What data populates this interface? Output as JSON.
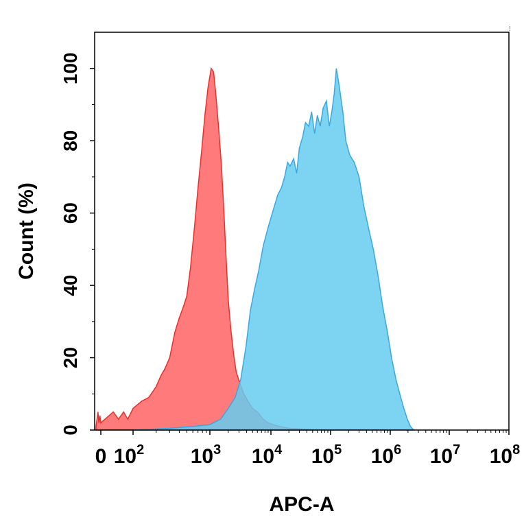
{
  "chart_data": {
    "type": "area",
    "title": "",
    "xlabel": "APC-A",
    "ylabel": "Count (%)",
    "x_scale": "biexponential",
    "xlim": [
      -100,
      100000000
    ],
    "ylim": [
      0,
      110
    ],
    "x_ticks": [
      {
        "value": 0,
        "base": "0",
        "exp": ""
      },
      {
        "value": 100,
        "base": "10",
        "exp": "2"
      },
      {
        "value": 1000,
        "base": "10",
        "exp": "3"
      },
      {
        "value": 10000,
        "base": "10",
        "exp": "4"
      },
      {
        "value": 100000,
        "base": "10",
        "exp": "5"
      },
      {
        "value": 1000000,
        "base": "10",
        "exp": "6"
      },
      {
        "value": 10000000,
        "base": "10",
        "exp": "7"
      },
      {
        "value": 100000000,
        "base": "10",
        "exp": "8"
      }
    ],
    "y_ticks": [
      "0",
      "20",
      "40",
      "60",
      "80",
      "100"
    ],
    "grid": false,
    "legend": "none",
    "series": [
      {
        "color": "#ff6b6b",
        "stroke": "#e8302c",
        "opacity": 0.9,
        "points": [
          [
            -100,
            1
          ],
          [
            -80,
            3
          ],
          [
            -60,
            5
          ],
          [
            -40,
            2
          ],
          [
            -20,
            4
          ],
          [
            0,
            2
          ],
          [
            15,
            5
          ],
          [
            30,
            3
          ],
          [
            50,
            5
          ],
          [
            70,
            3
          ],
          [
            100,
            6
          ],
          [
            130,
            8
          ],
          [
            160,
            9
          ],
          [
            200,
            12
          ],
          [
            230,
            15
          ],
          [
            260,
            17
          ],
          [
            300,
            20
          ],
          [
            350,
            27
          ],
          [
            400,
            31
          ],
          [
            450,
            34
          ],
          [
            500,
            37
          ],
          [
            560,
            45
          ],
          [
            630,
            56
          ],
          [
            700,
            67
          ],
          [
            780,
            77
          ],
          [
            860,
            87
          ],
          [
            950,
            95
          ],
          [
            1050,
            100
          ],
          [
            1150,
            99
          ],
          [
            1250,
            93
          ],
          [
            1400,
            83
          ],
          [
            1550,
            73
          ],
          [
            1700,
            60
          ],
          [
            1850,
            47
          ],
          [
            2000,
            36
          ],
          [
            2200,
            28
          ],
          [
            2450,
            21
          ],
          [
            2700,
            16
          ],
          [
            3100,
            13
          ],
          [
            3600,
            10
          ],
          [
            4200,
            8
          ],
          [
            5000,
            6
          ],
          [
            6000,
            5
          ],
          [
            7500,
            3
          ],
          [
            9000,
            2
          ],
          [
            11000,
            1.5
          ],
          [
            14000,
            1
          ],
          [
            20000,
            0.5
          ],
          [
            40000,
            0.2
          ],
          [
            60000,
            0
          ]
        ]
      },
      {
        "color": "#66ccf0",
        "stroke": "#3aa8de",
        "opacity": 0.85,
        "points": [
          [
            100,
            0
          ],
          [
            300,
            0.5
          ],
          [
            600,
            1
          ],
          [
            1000,
            1.5
          ],
          [
            1500,
            3
          ],
          [
            2000,
            6
          ],
          [
            2600,
            9
          ],
          [
            3200,
            14
          ],
          [
            3900,
            23
          ],
          [
            4600,
            33
          ],
          [
            5400,
            39
          ],
          [
            6300,
            44
          ],
          [
            7500,
            51
          ],
          [
            9000,
            56
          ],
          [
            11000,
            61
          ],
          [
            13000,
            65
          ],
          [
            15000,
            67
          ],
          [
            17000,
            70
          ],
          [
            19000,
            74
          ],
          [
            21000,
            73
          ],
          [
            24000,
            75
          ],
          [
            27000,
            71
          ],
          [
            30000,
            78
          ],
          [
            34000,
            81
          ],
          [
            38000,
            85
          ],
          [
            43000,
            84
          ],
          [
            48000,
            88
          ],
          [
            54000,
            82
          ],
          [
            60000,
            87
          ],
          [
            67000,
            84
          ],
          [
            75000,
            89
          ],
          [
            85000,
            91
          ],
          [
            95000,
            84
          ],
          [
            105000,
            88
          ],
          [
            115000,
            93
          ],
          [
            125000,
            100
          ],
          [
            140000,
            95
          ],
          [
            160000,
            88
          ],
          [
            180000,
            80
          ],
          [
            210000,
            76
          ],
          [
            250000,
            74
          ],
          [
            300000,
            70
          ],
          [
            360000,
            62
          ],
          [
            430000,
            56
          ],
          [
            520000,
            50
          ],
          [
            620000,
            43
          ],
          [
            750000,
            34
          ],
          [
            900000,
            27
          ],
          [
            1050000,
            20
          ],
          [
            1250000,
            14
          ],
          [
            1450000,
            10
          ],
          [
            1700000,
            6
          ],
          [
            1950000,
            3
          ],
          [
            2200000,
            1
          ],
          [
            2500000,
            0
          ]
        ]
      }
    ],
    "marker_text": "!"
  }
}
